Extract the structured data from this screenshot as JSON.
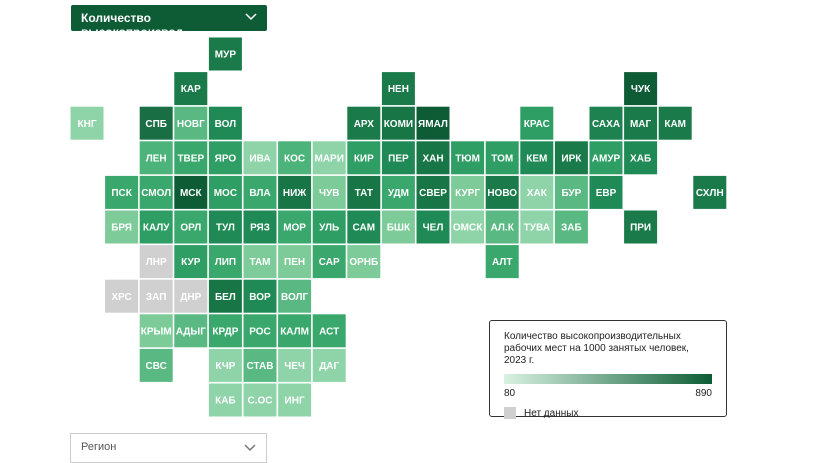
{
  "header": {
    "dropdown": "Количество высокопроизвод..."
  },
  "legend": {
    "title": "Количество высокопроизводительных рабочих мест на 1000 занятых человек, 2023 г.",
    "min": 80,
    "max": 890,
    "no_data": "Нет данных"
  },
  "region_select": {
    "placeholder": "Регион"
  },
  "tiles": [
    {
      "label": "МУР",
      "color": "#1a7a4a"
    },
    {
      "label": "КАР",
      "color": "#1a7a4a"
    },
    {
      "label": "НЕН",
      "color": "#1a7a4a"
    },
    {
      "label": "ЧУК",
      "color": "#0d5c36"
    },
    {
      "label": "КНГ",
      "color": "#8fd4a8"
    },
    {
      "label": "СПБ",
      "color": "#1a6e43"
    },
    {
      "label": "НОВГ",
      "color": "#5ab883"
    },
    {
      "label": "ВОЛ",
      "color": "#1f8a55"
    },
    {
      "label": "АРХ",
      "color": "#1a7a4a"
    },
    {
      "label": "КОМИ",
      "color": "#177546"
    },
    {
      "label": "ЯМАЛ",
      "color": "#0d5c36"
    },
    {
      "label": "КРАС",
      "color": "#2e9e64"
    },
    {
      "label": "САХА",
      "color": "#1d8150"
    },
    {
      "label": "МАГ",
      "color": "#1a7a4a"
    },
    {
      "label": "КАМ",
      "color": "#1a7a4a"
    },
    {
      "label": "ЛЕН",
      "color": "#4cb47a"
    },
    {
      "label": "ТВЕР",
      "color": "#3aa86d"
    },
    {
      "label": "ЯРО",
      "color": "#2e9e64"
    },
    {
      "label": "ИВА",
      "color": "#8fd4a8"
    },
    {
      "label": "КОС",
      "color": "#4cb47a"
    },
    {
      "label": "МАРИ",
      "color": "#8fd4a8"
    },
    {
      "label": "КИР",
      "color": "#2e9e64"
    },
    {
      "label": "ПЕР",
      "color": "#1f8a55"
    },
    {
      "label": "ХАН",
      "color": "#177546"
    },
    {
      "label": "ТЮМ",
      "color": "#2e9e64"
    },
    {
      "label": "ТОМ",
      "color": "#2e9e64"
    },
    {
      "label": "КЕМ",
      "color": "#1f8a55"
    },
    {
      "label": "ИРК",
      "color": "#1a7a4a"
    },
    {
      "label": "АМУР",
      "color": "#2e9e64"
    },
    {
      "label": "ХАБ",
      "color": "#1f8a55"
    },
    {
      "label": "ПСК",
      "color": "#3aa86d"
    },
    {
      "label": "СМОЛ",
      "color": "#3aa86d"
    },
    {
      "label": "МСК",
      "color": "#0d5c36"
    },
    {
      "label": "МОС",
      "color": "#2e9e64"
    },
    {
      "label": "ВЛА",
      "color": "#3aa86d"
    },
    {
      "label": "НИЖ",
      "color": "#177546"
    },
    {
      "label": "ЧУВ",
      "color": "#7ccb98"
    },
    {
      "label": "ТАТ",
      "color": "#177546"
    },
    {
      "label": "УДМ",
      "color": "#3aa86d"
    },
    {
      "label": "СВЕР",
      "color": "#177546"
    },
    {
      "label": "КУРГ",
      "color": "#7ccb98"
    },
    {
      "label": "НОВО",
      "color": "#1a7a4a"
    },
    {
      "label": "ХАК",
      "color": "#8fd4a8"
    },
    {
      "label": "БУР",
      "color": "#5ab883"
    },
    {
      "label": "ЕВР",
      "color": "#1f8a55"
    },
    {
      "label": "СХЛН",
      "color": "#1a7a4a"
    },
    {
      "label": "БРЯ",
      "color": "#7ccb98"
    },
    {
      "label": "КАЛУ",
      "color": "#2e9e64"
    },
    {
      "label": "ОРЛ",
      "color": "#3aa86d"
    },
    {
      "label": "ТУЛ",
      "color": "#1f8a55"
    },
    {
      "label": "РЯЗ",
      "color": "#1f8a55"
    },
    {
      "label": "МОР",
      "color": "#3aa86d"
    },
    {
      "label": "УЛЬ",
      "color": "#2e9e64"
    },
    {
      "label": "САМ",
      "color": "#1f8a55"
    },
    {
      "label": "БШК",
      "color": "#7ccb98"
    },
    {
      "label": "ЧЕЛ",
      "color": "#1f8a55"
    },
    {
      "label": "ОМСК",
      "color": "#8fd4a8"
    },
    {
      "label": "АЛ.К",
      "color": "#5ab883"
    },
    {
      "label": "ТУВА",
      "color": "#8fd4a8"
    },
    {
      "label": "ЗАБ",
      "color": "#5ab883"
    },
    {
      "label": "ПРИ",
      "color": "#1a7a4a"
    },
    {
      "label": "ЛНР",
      "color": "#d0d0d0"
    },
    {
      "label": "КУР",
      "color": "#2e9e64"
    },
    {
      "label": "ЛИП",
      "color": "#3aa86d"
    },
    {
      "label": "ТАМ",
      "color": "#7ccb98"
    },
    {
      "label": "ПЕН",
      "color": "#7ccb98"
    },
    {
      "label": "САР",
      "color": "#3aa86d"
    },
    {
      "label": "ОРНБ",
      "color": "#7ccb98"
    },
    {
      "label": "АЛТ",
      "color": "#3aa86d"
    },
    {
      "label": "ХРС",
      "color": "#d0d0d0"
    },
    {
      "label": "ЗАП",
      "color": "#d0d0d0"
    },
    {
      "label": "ДНР",
      "color": "#d0d0d0"
    },
    {
      "label": "БЕЛ",
      "color": "#177546"
    },
    {
      "label": "ВОР",
      "color": "#1f8a55"
    },
    {
      "label": "ВОЛГ",
      "color": "#5ab883"
    },
    {
      "label": "КРЫМ",
      "color": "#7ccb98"
    },
    {
      "label": "АДЫГ",
      "color": "#5ab883"
    },
    {
      "label": "КРДР",
      "color": "#3aa86d"
    },
    {
      "label": "РОС",
      "color": "#3aa86d"
    },
    {
      "label": "КАЛМ",
      "color": "#3aa86d"
    },
    {
      "label": "АСТ",
      "color": "#3aa86d"
    },
    {
      "label": "СВС",
      "color": "#5ab883"
    },
    {
      "label": "КЧР",
      "color": "#8fd4a8"
    },
    {
      "label": "СТАВ",
      "color": "#5ab883"
    },
    {
      "label": "ЧЕЧ",
      "color": "#8fd4a8"
    },
    {
      "label": "ДАГ",
      "color": "#8fd4a8"
    },
    {
      "label": "КАБ",
      "color": "#8fd4a8"
    },
    {
      "label": "С.ОС",
      "color": "#8fd4a8"
    },
    {
      "label": "ИНГ",
      "color": "#8fd4a8"
    }
  ]
}
